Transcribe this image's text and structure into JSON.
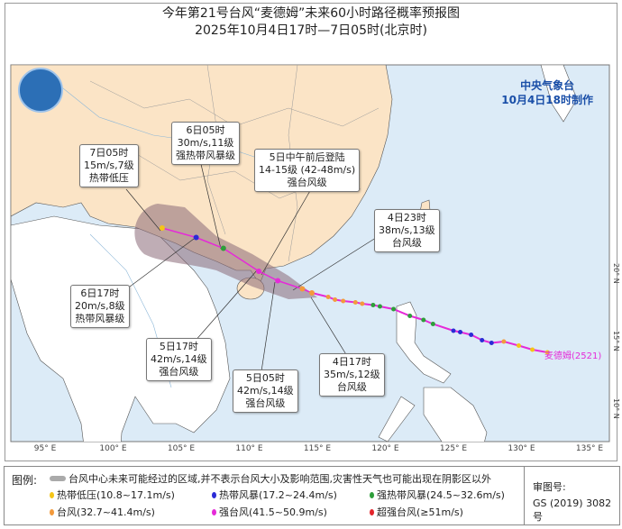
{
  "header": {
    "title": "今年第21号台风“麦德姆”未来60小时路径概率预报图",
    "subtitle": "2025年10月4日17时—7日05时(北京时)"
  },
  "agency": {
    "name": "中央气象台",
    "issued": "10月4日18时制作"
  },
  "storm": {
    "label": "麦德姆(2521)"
  },
  "colors": {
    "sea": "#dcebf7",
    "china_land": "#fbe4c6",
    "other_land": "#ffffff",
    "cone": "#8a6a78",
    "track": "#e52ad8",
    "TD": "#f5c518",
    "TS": "#2b2bd6",
    "STS": "#2e9e3a",
    "TY": "#f39a3c",
    "STY": "#e52ad8",
    "SuperTY": "#e3242b"
  },
  "callouts": [
    {
      "time": "7日05时",
      "wind": "15m/s,7级",
      "level": "热带低压"
    },
    {
      "time": "6日05时",
      "wind": "30m/s,11级",
      "level": "强热带风暴级"
    },
    {
      "time": "5日中午前后登陆",
      "wind": "14-15级 (42-48m/s)",
      "level": "强台风级"
    },
    {
      "time": "4日23时",
      "wind": "38m/s,13级",
      "level": "台风级"
    },
    {
      "time": "6日17时",
      "wind": "20m/s,8级",
      "level": "热带风暴级"
    },
    {
      "time": "5日17时",
      "wind": "42m/s,14级",
      "level": "强台风级"
    },
    {
      "time": "5日05时",
      "wind": "42m/s,14级",
      "level": "强台风级"
    },
    {
      "time": "4日17时",
      "wind": "35m/s,12级",
      "level": "台风级"
    }
  ],
  "forecast_track": [
    {
      "time": "4日17时",
      "lon": 114.6,
      "lat": 19.0,
      "cat": "TY"
    },
    {
      "time": "4日23时",
      "lon": 113.9,
      "lat": 19.3,
      "cat": "TY"
    },
    {
      "time": "5日05时",
      "lon": 112.1,
      "lat": 19.9,
      "cat": "STY"
    },
    {
      "time": "5日17时",
      "lon": 110.7,
      "lat": 20.6,
      "cat": "STY"
    },
    {
      "time": "6日05时",
      "lon": 108.1,
      "lat": 22.3,
      "cat": "STS"
    },
    {
      "time": "6日17时",
      "lon": 106.1,
      "lat": 23.1,
      "cat": "TS"
    },
    {
      "time": "7日05时",
      "lon": 103.6,
      "lat": 23.8,
      "cat": "TD"
    }
  ],
  "past_track": [
    {
      "lon": 131.9,
      "lat": 14.6,
      "cat": "TD"
    },
    {
      "lon": 130.8,
      "lat": 14.8,
      "cat": "TD"
    },
    {
      "lon": 129.8,
      "lat": 15.1,
      "cat": "TD"
    },
    {
      "lon": 128.7,
      "lat": 15.4,
      "cat": "TY"
    },
    {
      "lon": 127.8,
      "lat": 15.3,
      "cat": "TS"
    },
    {
      "lon": 127.1,
      "lat": 15.5,
      "cat": "TS"
    },
    {
      "lon": 126.3,
      "lat": 15.9,
      "cat": "TS"
    },
    {
      "lon": 125.5,
      "lat": 16.1,
      "cat": "TS"
    },
    {
      "lon": 125.0,
      "lat": 16.2,
      "cat": "TS"
    },
    {
      "lon": 123.5,
      "lat": 16.7,
      "cat": "STS"
    },
    {
      "lon": 122.8,
      "lat": 17.0,
      "cat": "STS"
    },
    {
      "lon": 121.8,
      "lat": 17.3,
      "cat": "STS"
    },
    {
      "lon": 120.6,
      "lat": 17.8,
      "cat": "STS"
    },
    {
      "lon": 119.6,
      "lat": 18.0,
      "cat": "STS"
    },
    {
      "lon": 119.1,
      "lat": 18.1,
      "cat": "STS"
    },
    {
      "lon": 118.3,
      "lat": 18.2,
      "cat": "TY"
    },
    {
      "lon": 117.8,
      "lat": 18.3,
      "cat": "TY"
    },
    {
      "lon": 116.9,
      "lat": 18.4,
      "cat": "TY"
    },
    {
      "lon": 116.3,
      "lat": 18.5,
      "cat": "TY"
    },
    {
      "lon": 115.8,
      "lat": 18.7,
      "cat": "TY"
    },
    {
      "lon": 114.6,
      "lat": 19.0,
      "cat": "TY"
    }
  ],
  "axes": {
    "lon_ticks": [
      "95° E",
      "100° E",
      "105° E",
      "110° E",
      "115° E",
      "120° E",
      "125° E",
      "130° E",
      "135° E"
    ],
    "lat_ticks": [
      "20° N",
      "15° N",
      "10° N"
    ]
  },
  "legend": {
    "heading": "图例:",
    "cone_text": "台风中心未来可能经过的区域,并不表示台风大小及影响范围,灾害性天气也可能出现在阴影区以外",
    "items": [
      {
        "label": "热带低压(10.8~17.1m/s)",
        "cat": "TD"
      },
      {
        "label": "热带风暴(17.2~24.4m/s)",
        "cat": "TS"
      },
      {
        "label": "强热带风暴(24.5~32.6m/s)",
        "cat": "STS"
      },
      {
        "label": "台风(32.7~41.4m/s)",
        "cat": "TY"
      },
      {
        "label": "强台风(41.5~50.9m/s)",
        "cat": "STY"
      },
      {
        "label": "超强台风(≥51m/s)",
        "cat": "SuperTY"
      }
    ],
    "approval_label": "审图号:",
    "approval_no": "GS (2019) 3082号"
  }
}
